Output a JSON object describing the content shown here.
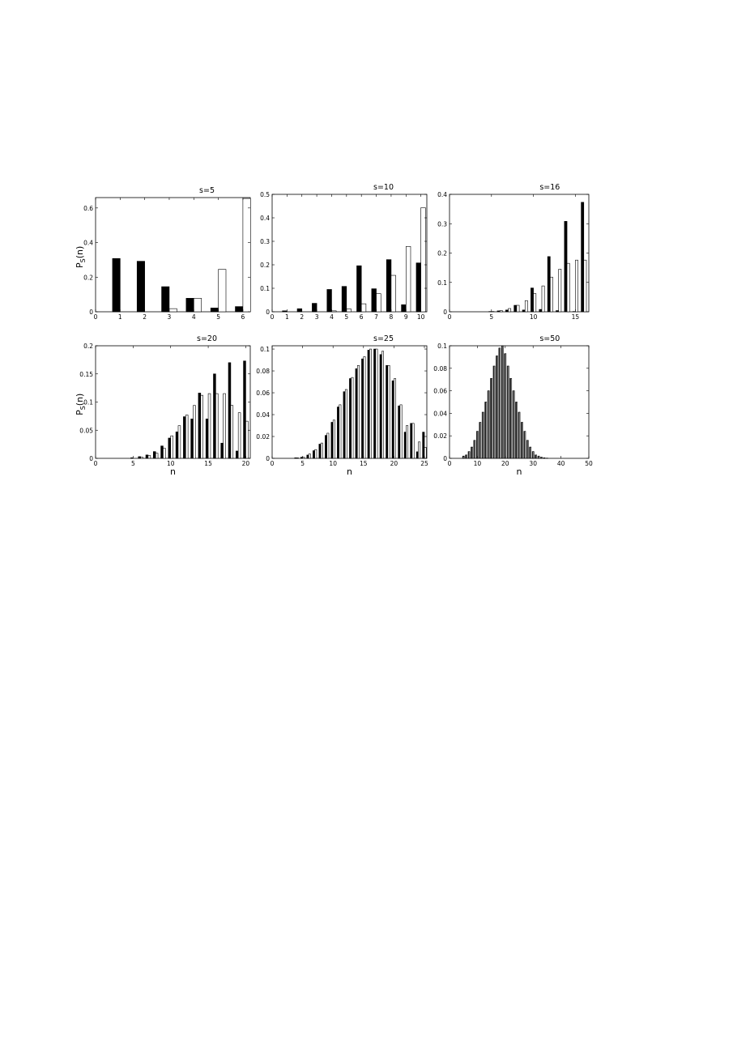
{
  "chart_data": [
    {
      "type": "bar",
      "title": "s=5",
      "xlabel": "",
      "ylabel": "P_S(n)",
      "xlim": [
        0,
        6.3
      ],
      "ylim": [
        0,
        0.66
      ],
      "xticks": [
        0,
        1,
        2,
        3,
        4,
        5,
        6
      ],
      "yticks": [
        0,
        0.2,
        0.4,
        0.6
      ],
      "x": [
        1,
        2,
        3,
        4,
        5,
        6
      ],
      "series": [
        {
          "style": "filled",
          "color": "#000000",
          "values": [
            0.308,
            0.292,
            0.145,
            0.078,
            0.022,
            0.03
          ]
        },
        {
          "style": "open",
          "color": "#ffffff",
          "values": [
            0.0,
            0.0,
            0.018,
            0.078,
            0.245,
            0.655
          ]
        }
      ]
    },
    {
      "type": "bar",
      "title": "s=10",
      "xlabel": "",
      "ylabel": "",
      "xlim": [
        0,
        10.4
      ],
      "ylim": [
        0,
        0.5
      ],
      "xticks": [
        0,
        1,
        2,
        3,
        4,
        5,
        6,
        7,
        8,
        9,
        10
      ],
      "yticks": [
        0,
        0.1,
        0.2,
        0.3,
        0.4,
        0.5
      ],
      "x": [
        1,
        2,
        3,
        4,
        5,
        6,
        7,
        8,
        9,
        10
      ],
      "series": [
        {
          "style": "filled",
          "color": "#000000",
          "values": [
            0.004,
            0.013,
            0.036,
            0.095,
            0.108,
            0.196,
            0.098,
            0.222,
            0.03,
            0.208
          ]
        },
        {
          "style": "open",
          "color": "#ffffff",
          "values": [
            0.0,
            0.0,
            0.0,
            0.004,
            0.012,
            0.034,
            0.077,
            0.155,
            0.278,
            0.443
          ]
        }
      ]
    },
    {
      "type": "bar",
      "title": "s=16",
      "xlabel": "",
      "ylabel": "",
      "xlim": [
        0,
        16.6
      ],
      "ylim": [
        0,
        0.4
      ],
      "xticks": [
        0,
        5,
        10,
        15
      ],
      "yticks": [
        0,
        0.1,
        0.2,
        0.3,
        0.4
      ],
      "x": [
        1,
        2,
        3,
        4,
        5,
        6,
        7,
        8,
        9,
        10,
        11,
        12,
        13,
        14,
        15,
        16
      ],
      "series": [
        {
          "style": "filled",
          "color": "#000000",
          "values": [
            0,
            0,
            0,
            0,
            0.001,
            0.003,
            0.006,
            0.022,
            0.006,
            0.081,
            0.008,
            0.188,
            0.004,
            0.308,
            0.001,
            0.373
          ]
        },
        {
          "style": "open",
          "color": "#ffffff",
          "values": [
            0,
            0,
            0,
            0,
            0.001,
            0.004,
            0.011,
            0.022,
            0.038,
            0.062,
            0.088,
            0.118,
            0.145,
            0.165,
            0.176,
            0.176
          ]
        }
      ]
    },
    {
      "type": "bar",
      "title": "s=20",
      "xlabel": "n",
      "ylabel": "P_S(n)",
      "xlim": [
        0,
        20.6
      ],
      "ylim": [
        0,
        0.2
      ],
      "xticks": [
        0,
        5,
        10,
        15,
        20
      ],
      "yticks": [
        0,
        0.05,
        0.1,
        0.15,
        0.2
      ],
      "x": [
        1,
        2,
        3,
        4,
        5,
        6,
        7,
        8,
        9,
        10,
        11,
        12,
        13,
        14,
        15,
        16,
        17,
        18,
        19,
        20
      ],
      "series": [
        {
          "style": "filled",
          "color": "#000000",
          "values": [
            0,
            0,
            0,
            0,
            0.001,
            0.003,
            0.006,
            0.012,
            0.022,
            0.036,
            0.047,
            0.074,
            0.07,
            0.116,
            0.07,
            0.15,
            0.027,
            0.17,
            0.013,
            0.173
          ]
        },
        {
          "style": "open",
          "color": "#ffffff",
          "values": [
            0,
            0,
            0,
            0,
            0,
            0.002,
            0.005,
            0.009,
            0.018,
            0.04,
            0.058,
            0.077,
            0.094,
            0.112,
            0.115,
            0.115,
            0.115,
            0.094,
            0.081,
            0.066
          ]
        }
      ]
    },
    {
      "type": "bar",
      "title": "s=25",
      "xlabel": "n",
      "ylabel": "",
      "xlim": [
        0,
        25.4
      ],
      "ylim": [
        0,
        0.103
      ],
      "xticks": [
        0,
        5,
        10,
        15,
        20,
        25
      ],
      "yticks": [
        0,
        0.02,
        0.04,
        0.06,
        0.08,
        0.1
      ],
      "x": [
        1,
        2,
        3,
        4,
        5,
        6,
        7,
        8,
        9,
        10,
        11,
        12,
        13,
        14,
        15,
        16,
        17,
        18,
        19,
        20,
        21,
        22,
        23,
        24,
        25
      ],
      "series": [
        {
          "style": "filled",
          "color": "#000000",
          "values": [
            0,
            0,
            0,
            0.0005,
            0.001,
            0.003,
            0.007,
            0.013,
            0.021,
            0.033,
            0.047,
            0.061,
            0.073,
            0.082,
            0.091,
            0.099,
            0.1,
            0.095,
            0.085,
            0.071,
            0.048,
            0.024,
            0.032,
            0.006,
            0.024
          ]
        },
        {
          "style": "open",
          "color": "#ffffff",
          "values": [
            0,
            0,
            0,
            0.0005,
            0.001,
            0.004,
            0.008,
            0.014,
            0.023,
            0.035,
            0.049,
            0.063,
            0.074,
            0.085,
            0.093,
            0.1,
            0.1,
            0.098,
            0.085,
            0.073,
            0.049,
            0.03,
            0.032,
            0.015,
            0.01
          ]
        }
      ]
    },
    {
      "type": "bar",
      "title": "s=50",
      "xlabel": "n",
      "ylabel": "",
      "xlim": [
        0,
        50
      ],
      "ylim": [
        0,
        0.1
      ],
      "xticks": [
        0,
        10,
        20,
        30,
        40,
        50
      ],
      "yticks": [
        0,
        0.02,
        0.04,
        0.06,
        0.08,
        0.1
      ],
      "x": [
        1,
        2,
        3,
        4,
        5,
        6,
        7,
        8,
        9,
        10,
        11,
        12,
        13,
        14,
        15,
        16,
        17,
        18,
        19,
        20,
        21,
        22,
        23,
        24,
        25,
        26,
        27,
        28,
        29,
        30,
        31,
        32,
        33,
        34,
        35
      ],
      "series": [
        {
          "style": "filled",
          "color": "#555555",
          "values": [
            0,
            0,
            0,
            0,
            0.002,
            0.003,
            0.006,
            0.01,
            0.016,
            0.024,
            0.032,
            0.041,
            0.05,
            0.06,
            0.071,
            0.082,
            0.091,
            0.098,
            0.1,
            0.093,
            0.082,
            0.071,
            0.06,
            0.05,
            0.041,
            0.032,
            0.024,
            0.016,
            0.01,
            0.006,
            0.003,
            0.002,
            0.001,
            0.0005,
            0.0002
          ]
        },
        {
          "style": "open",
          "color": "#ffffff",
          "values": [
            0,
            0,
            0,
            0,
            0.002,
            0.003,
            0.006,
            0.01,
            0.016,
            0.024,
            0.032,
            0.041,
            0.05,
            0.06,
            0.071,
            0.082,
            0.091,
            0.098,
            0.1,
            0.093,
            0.082,
            0.071,
            0.06,
            0.05,
            0.041,
            0.032,
            0.024,
            0.016,
            0.01,
            0.006,
            0.003,
            0.002,
            0.001,
            0.0005,
            0.0002
          ]
        }
      ]
    }
  ]
}
